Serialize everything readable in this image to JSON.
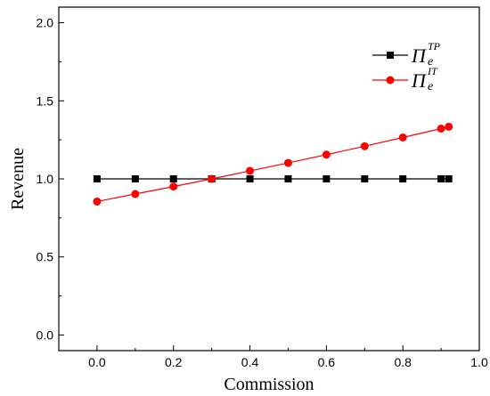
{
  "chart_data": {
    "type": "line",
    "xlabel": "Commission",
    "ylabel": "Revenue",
    "xlim": [
      -0.1,
      1.0
    ],
    "ylim": [
      -0.1,
      2.1
    ],
    "xticks": [
      0.0,
      0.2,
      0.4,
      0.6,
      0.8,
      1.0
    ],
    "xtick_labels": [
      "0.0",
      "0.2",
      "0.4",
      "0.6",
      "0.8",
      "1.0"
    ],
    "yticks": [
      0.0,
      0.5,
      1.0,
      1.5,
      2.0
    ],
    "ytick_labels": [
      "0.0",
      "0.5",
      "1.0",
      "1.5",
      "2.0"
    ],
    "grid": false,
    "legend_position": "top-right",
    "series": [
      {
        "name": "Π_e^TP",
        "legend_main": "Π",
        "legend_sub": "e",
        "legend_sup": "TP",
        "color": "#000000",
        "marker": "square",
        "x": [
          0.0,
          0.1,
          0.2,
          0.3,
          0.4,
          0.5,
          0.6,
          0.7,
          0.8,
          0.9,
          0.92
        ],
        "y": [
          1.0,
          1.0,
          1.0,
          1.0,
          1.0,
          1.0,
          1.0,
          1.0,
          1.0,
          1.0,
          1.0
        ]
      },
      {
        "name": "Π_e^IT",
        "legend_main": "Π",
        "legend_sub": "e",
        "legend_sup": "IT",
        "color": "#ff0000",
        "marker": "circle",
        "x": [
          0.0,
          0.1,
          0.2,
          0.3,
          0.4,
          0.5,
          0.6,
          0.7,
          0.8,
          0.9,
          0.92
        ],
        "y": [
          0.855,
          0.903,
          0.951,
          1.0,
          1.051,
          1.102,
          1.155,
          1.209,
          1.265,
          1.322,
          1.334
        ]
      }
    ]
  }
}
